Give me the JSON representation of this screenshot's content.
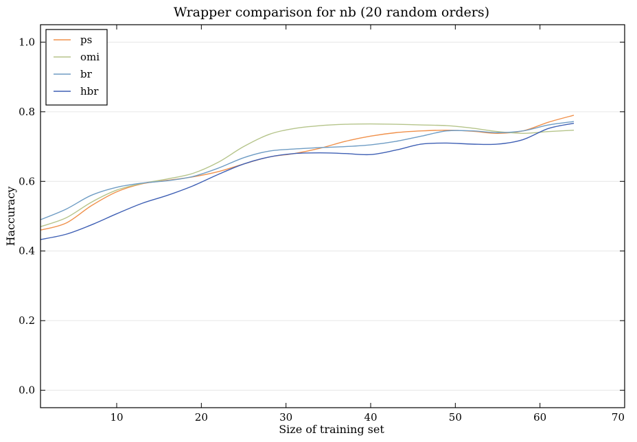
{
  "chart_data": {
    "type": "line",
    "title": "Wrapper comparison for nb (20 random orders)",
    "xlabel": "Size of training set",
    "ylabel": "Haccuracy",
    "xlim": [
      1,
      70
    ],
    "ylim": [
      -0.05,
      1.05
    ],
    "x_ticks": [
      10,
      20,
      30,
      40,
      50,
      60,
      70
    ],
    "y_ticks": [
      0.0,
      0.2,
      0.4,
      0.6,
      0.8,
      1.0
    ],
    "x_tick_labels": [
      "10",
      "20",
      "30",
      "40",
      "50",
      "60",
      "70"
    ],
    "y_tick_labels": [
      "0.0",
      "0.2",
      "0.4",
      "0.6",
      "0.8",
      "1.0"
    ],
    "grid": "horizontal",
    "legend_position": "top-left",
    "x": [
      1,
      4,
      7,
      10,
      13,
      16,
      19,
      22,
      25,
      28,
      31,
      34,
      37,
      40,
      43,
      46,
      49,
      52,
      55,
      58,
      61,
      64
    ],
    "series": [
      {
        "name": "ps",
        "color": "#f0904a",
        "values": [
          0.46,
          0.48,
          0.53,
          0.57,
          0.593,
          0.603,
          0.613,
          0.628,
          0.65,
          0.67,
          0.68,
          0.695,
          0.715,
          0.73,
          0.74,
          0.745,
          0.747,
          0.744,
          0.738,
          0.745,
          0.77,
          0.79
        ]
      },
      {
        "name": "omi",
        "color": "#b5c48a",
        "values": [
          0.47,
          0.495,
          0.54,
          0.575,
          0.594,
          0.607,
          0.623,
          0.655,
          0.7,
          0.735,
          0.752,
          0.76,
          0.764,
          0.765,
          0.764,
          0.762,
          0.76,
          0.753,
          0.743,
          0.738,
          0.743,
          0.747
        ]
      },
      {
        "name": "br",
        "color": "#6e9cc4",
        "values": [
          0.49,
          0.52,
          0.56,
          0.583,
          0.595,
          0.602,
          0.614,
          0.638,
          0.668,
          0.687,
          0.693,
          0.697,
          0.7,
          0.705,
          0.715,
          0.73,
          0.745,
          0.745,
          0.74,
          0.745,
          0.762,
          0.772
        ]
      },
      {
        "name": "hbr",
        "color": "#3e5fb4",
        "values": [
          0.433,
          0.448,
          0.475,
          0.507,
          0.537,
          0.56,
          0.587,
          0.62,
          0.65,
          0.67,
          0.68,
          0.682,
          0.68,
          0.677,
          0.69,
          0.707,
          0.71,
          0.707,
          0.707,
          0.72,
          0.752,
          0.767
        ]
      }
    ]
  }
}
